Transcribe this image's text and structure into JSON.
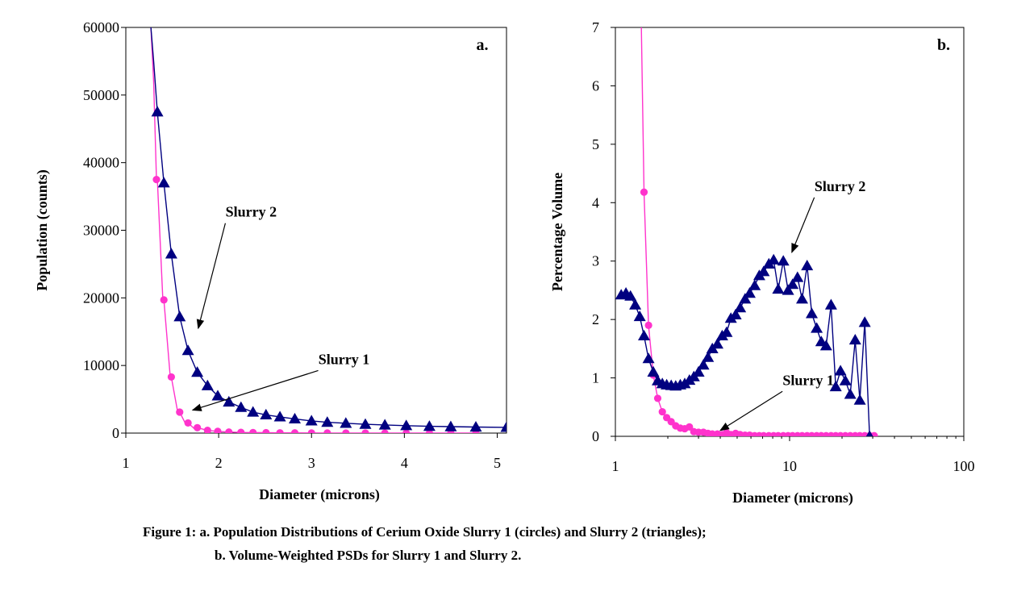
{
  "chart_data": [
    {
      "type": "line",
      "panel_label": "a.",
      "xlabel": "Diameter (microns)",
      "ylabel": "Population (counts)",
      "xlim": [
        1,
        5.1
      ],
      "ylim": [
        0,
        60000
      ],
      "xscale": "linear",
      "xticks": [
        1,
        2,
        3,
        4,
        5
      ],
      "xtick_labels": [
        "1",
        "2",
        "3",
        "4",
        "5"
      ],
      "yticks": [
        0,
        10000,
        20000,
        30000,
        40000,
        50000,
        60000
      ],
      "ytick_labels": [
        "0",
        "10000",
        "20000",
        "30000",
        "40000",
        "50000",
        "60000"
      ],
      "grid": false,
      "series": [
        {
          "name": "Slurry 1",
          "marker": "circle",
          "color": "#ff33cc",
          "curve": {
            "x": [
              1.27,
              1.3,
              1.34,
              1.4,
              1.48,
              1.56,
              1.65,
              1.75
            ],
            "y": [
              60000,
              52000,
              37500,
              19500,
              8000,
              3000,
              1200,
              500
            ]
          },
          "x": [
            1.33,
            1.41,
            1.49,
            1.58,
            1.67,
            1.77,
            1.88,
            1.99,
            2.11,
            2.24,
            2.37,
            2.51,
            2.66,
            2.82,
            3.0,
            3.17,
            3.37,
            3.58,
            3.79,
            4.02,
            4.27,
            4.5,
            4.77
          ],
          "y": [
            37500,
            19700,
            8300,
            3100,
            1500,
            800,
            400,
            250,
            150,
            100,
            80,
            60,
            40,
            30,
            20,
            15,
            10,
            10,
            5,
            5,
            5,
            5,
            5
          ]
        },
        {
          "name": "Slurry 2",
          "marker": "triangle",
          "color": "#000080",
          "curve": {
            "x": [
              1.27,
              1.3,
              1.34
            ],
            "y": [
              60000,
              55000,
              47500
            ]
          },
          "x": [
            1.34,
            1.41,
            1.49,
            1.58,
            1.67,
            1.77,
            1.88,
            1.99,
            2.11,
            2.24,
            2.37,
            2.51,
            2.66,
            2.82,
            3.0,
            3.17,
            3.37,
            3.58,
            3.79,
            4.02,
            4.27,
            4.5,
            4.77,
            5.1
          ],
          "y": [
            47500,
            37000,
            26500,
            17200,
            12200,
            9000,
            7000,
            5500,
            4600,
            3800,
            3100,
            2700,
            2400,
            2100,
            1800,
            1600,
            1450,
            1300,
            1200,
            1100,
            1000,
            950,
            900,
            850
          ]
        }
      ],
      "annotations": [
        {
          "text": "Slurry 2",
          "x": 2.35,
          "y": 32000,
          "arrow_to_x": 1.78,
          "arrow_to_y": 15500
        },
        {
          "text": "Slurry 1",
          "x": 3.35,
          "y": 10200,
          "arrow_to_x": 1.72,
          "arrow_to_y": 3400
        }
      ]
    },
    {
      "type": "line",
      "panel_label": "b.",
      "xlabel": "Diameter (microns)",
      "ylabel": "Percentage Volume",
      "xlim": [
        1,
        100
      ],
      "ylim": [
        0,
        7
      ],
      "xscale": "log",
      "xticks": [
        1,
        10,
        100
      ],
      "xtick_labels": [
        "1",
        "10",
        "100"
      ],
      "yticks": [
        0,
        1,
        2,
        3,
        4,
        5,
        6,
        7
      ],
      "ytick_labels": [
        "0",
        "1",
        "2",
        "3",
        "4",
        "5",
        "6",
        "7"
      ],
      "grid": false,
      "series": [
        {
          "name": "Slurry 1",
          "marker": "circle",
          "color": "#ff33cc",
          "curve": {
            "x": [
              1.41,
              1.46,
              1.55,
              1.65
            ],
            "y": [
              7,
              4.2,
              1.9,
              1.05
            ]
          },
          "x": [
            1.46,
            1.55,
            1.65,
            1.75,
            1.86,
            1.97,
            2.09,
            2.22,
            2.36,
            2.5,
            2.66,
            2.82,
            3.0,
            3.2,
            3.4,
            3.6,
            3.85,
            4.1,
            4.35,
            4.6,
            4.9,
            5.2,
            5.55,
            5.9,
            6.3,
            6.7,
            7.1,
            7.6,
            8.1,
            8.6,
            9.2,
            9.8,
            10.4,
            11.1,
            11.8,
            12.6,
            13.4,
            14.3,
            15.2,
            16.2,
            17.3,
            18.4,
            19.6,
            20.9,
            22.3,
            23.8,
            25.3,
            27.0,
            28.8,
            30.6
          ],
          "y": [
            4.18,
            1.9,
            1.05,
            0.65,
            0.42,
            0.32,
            0.25,
            0.18,
            0.14,
            0.13,
            0.16,
            0.08,
            0.07,
            0.07,
            0.05,
            0.04,
            0.04,
            0.03,
            0.06,
            0.03,
            0.05,
            0.03,
            0.02,
            0.02,
            0.01,
            0.01,
            0.01,
            0.01,
            0.01,
            0.01,
            0.01,
            0.01,
            0.01,
            0.01,
            0.01,
            0.01,
            0.01,
            0.01,
            0.01,
            0.01,
            0.01,
            0.01,
            0.01,
            0.01,
            0.01,
            0.01,
            0.01,
            0.01,
            0.01,
            0.01
          ]
        },
        {
          "name": "Slurry 2",
          "marker": "triangle",
          "color": "#000080",
          "x": [
            1.08,
            1.15,
            1.22,
            1.3,
            1.38,
            1.46,
            1.55,
            1.65,
            1.75,
            1.86,
            1.97,
            2.09,
            2.22,
            2.36,
            2.5,
            2.66,
            2.82,
            3.0,
            3.2,
            3.4,
            3.6,
            3.85,
            4.1,
            4.35,
            4.6,
            4.9,
            5.2,
            5.55,
            5.9,
            6.3,
            6.7,
            7.1,
            7.6,
            8.1,
            8.6,
            9.2,
            9.8,
            10.4,
            11.1,
            11.8,
            12.6,
            13.4,
            14.3,
            15.2,
            16.2,
            17.3,
            18.4,
            19.6,
            20.9,
            22.3,
            23.8,
            25.3,
            27.0,
            28.8
          ],
          "y": [
            2.42,
            2.45,
            2.4,
            2.25,
            2.05,
            1.72,
            1.33,
            1.1,
            0.95,
            0.9,
            0.88,
            0.87,
            0.86,
            0.88,
            0.9,
            0.96,
            1.02,
            1.1,
            1.22,
            1.35,
            1.5,
            1.58,
            1.72,
            1.78,
            2.02,
            2.08,
            2.2,
            2.35,
            2.45,
            2.58,
            2.75,
            2.82,
            2.95,
            3.02,
            2.52,
            3.0,
            2.5,
            2.6,
            2.72,
            2.35,
            2.92,
            2.1,
            1.85,
            1.62,
            1.55,
            2.25,
            0.85,
            1.12,
            0.95,
            0.72,
            1.65,
            0.62,
            1.95,
            0.0
          ]
        }
      ],
      "annotations": [
        {
          "text": "Slurry 2",
          "x": 19.5,
          "y": 4.2,
          "arrow_to_x": 10.3,
          "arrow_to_y": 3.15
        },
        {
          "text": "Slurry 1",
          "x": 12.8,
          "y": 0.88,
          "arrow_to_x": 4.0,
          "arrow_to_y": 0.1
        }
      ]
    }
  ],
  "caption": {
    "line1": "Figure 1: a. Population Distributions of Cerium Oxide Slurry 1 (circles) and Slurry 2 (triangles);",
    "line2": "b. Volume-Weighted PSDs for Slurry 1 and Slurry 2."
  }
}
